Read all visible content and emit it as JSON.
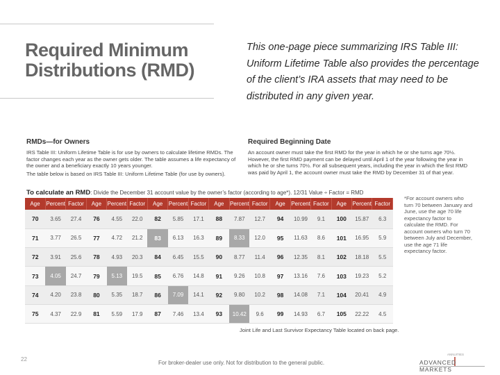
{
  "page": {
    "title": "Required Minimum Distributions (RMD)",
    "intro": "This one-page piece summarizing IRS Table III: Uniform Lifetime Table also provides the percentage of the client’s IRA assets that may need to be distributed in any given year."
  },
  "owners": {
    "heading": "RMDs—for Owners",
    "para1": "IRS Table III: Uniform Lifetime Table is for use by owners to calculate lifetime RMDs. The factor changes each year as the owner gets older. The table assumes a life expectancy of the owner and a beneficiary exactly 10 years younger.",
    "para2": "The table below is based on IRS Table III: Uniform Lifetime Table (for use by owners)."
  },
  "rbd": {
    "heading": "Required Beginning Date",
    "para": "An account owner must take the first RMD for the year in which he or she turns age 70½. However, the first RMD payment can be delayed until April 1 of the year following the year in which he or she turns 70½. For all subsequent years, including the year in which the first RMD was paid by April 1, the account owner must take the RMD by December 31 of that year."
  },
  "calc": {
    "label": "To calculate an RMD",
    "formula": ": Divide the December 31 account value by the owner’s factor (according to age*). 12/31 Value ÷ Factor = RMD"
  },
  "table": {
    "headers": [
      "Age",
      "Percent",
      "Factor",
      "Age",
      "Percent",
      "Factor",
      "Age",
      "Percent",
      "Factor",
      "Age",
      "Percent",
      "Factor",
      "Age",
      "Percent",
      "Factor",
      "Age",
      "Percent",
      "Factor"
    ],
    "rows": [
      [
        "70",
        "3.65",
        "27.4",
        "76",
        "4.55",
        "22.0",
        "82",
        "5.85",
        "17.1",
        "88",
        "7.87",
        "12.7",
        "94",
        "10.99",
        "9.1",
        "100",
        "15.87",
        "6.3"
      ],
      [
        "71",
        "3.77",
        "26.5",
        "77",
        "4.72",
        "21.2",
        "83",
        "6.13",
        "16.3",
        "89",
        "8.33",
        "12.0",
        "95",
        "11.63",
        "8.6",
        "101",
        "16.95",
        "5.9"
      ],
      [
        "72",
        "3.91",
        "25.6",
        "78",
        "4.93",
        "20.3",
        "84",
        "6.45",
        "15.5",
        "90",
        "8.77",
        "11.4",
        "96",
        "12.35",
        "8.1",
        "102",
        "18.18",
        "5.5"
      ],
      [
        "73",
        "4.05",
        "24.7",
        "79",
        "5.13",
        "19.5",
        "85",
        "6.76",
        "14.8",
        "91",
        "9.26",
        "10.8",
        "97",
        "13.16",
        "7.6",
        "103",
        "19.23",
        "5.2"
      ],
      [
        "74",
        "4.20",
        "23.8",
        "80",
        "5.35",
        "18.7",
        "86",
        "7.09",
        "14.1",
        "92",
        "9.80",
        "10.2",
        "98",
        "14.08",
        "7.1",
        "104",
        "20.41",
        "4.9"
      ],
      [
        "75",
        "4.37",
        "22.9",
        "81",
        "5.59",
        "17.9",
        "87",
        "7.46",
        "13.4",
        "93",
        "10.42",
        "9.6",
        "99",
        "14.93",
        "6.7",
        "105",
        "22.22",
        "4.5"
      ]
    ]
  },
  "side_note": "*For account owners who turn 70 between January and June, use the age 70 life expectancy factor to calculate the RMD. For account owners who turn 70 between July and December, use the age 71 life expectancy factor.",
  "table_footer": "Joint Life and Last Survivor Expectancy Table located on back page.",
  "footer": {
    "page_number": "22",
    "disclaimer": "For broker-dealer use only. Not for distribution to the general public.",
    "logo_small": "ANNUITIES",
    "logo_text": "ADVANCED MARKETS"
  },
  "colors": {
    "header_red": "#b33a2c",
    "highlight_gray": "#a8a8a8"
  }
}
